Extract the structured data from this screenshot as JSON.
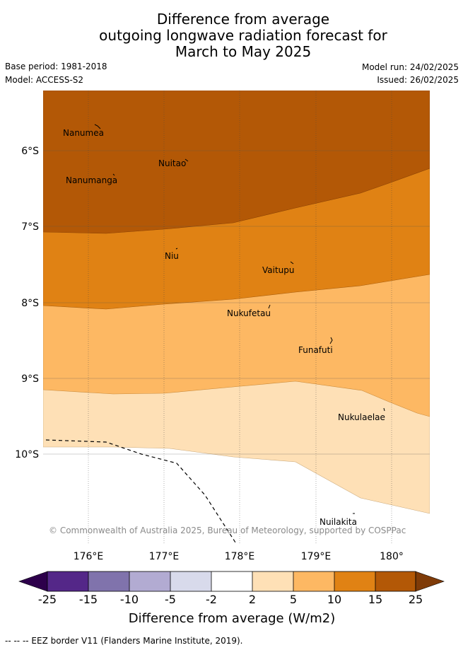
{
  "title": {
    "line1": "Difference from average",
    "line2": "outgoing longwave radiation forecast for",
    "line3": "March to May 2025"
  },
  "meta": {
    "base_period": "Base period: 1981-2018",
    "model": "Model: ACCESS-S2",
    "model_run": "Model run: 24/02/2025",
    "issued": "Issued: 26/02/2025"
  },
  "map": {
    "lat_labels": [
      "6°S",
      "7°S",
      "8°S",
      "9°S",
      "10°S"
    ],
    "lon_labels": [
      "176°E",
      "177°E",
      "178°E",
      "179°E",
      "180°"
    ],
    "places": [
      "Nanumea",
      "Nuitao",
      "Nanumanga",
      "Niu",
      "Vaitupu",
      "Nukufetau",
      "Funafuti",
      "Nukulaelae",
      "Nuilakita"
    ],
    "copyright": "© Commonwealth of Australia 2025, Bureau of Meteorology, supported by COSPPac",
    "colors": {
      "band_15_25": "#b35806",
      "band_10_15": "#e08214",
      "band_5_10": "#fdb863",
      "band_2_5": "#fee0b6",
      "band_neg2_2": "#ffffff"
    }
  },
  "legend": {
    "ticks": [
      "-25",
      "-15",
      "-10",
      "-5",
      "-2",
      "2",
      "5",
      "10",
      "15",
      "25"
    ],
    "label": "Difference from average (W/m2)",
    "colors": [
      "#542788",
      "#8073ac",
      "#b2abd2",
      "#d8daeb",
      "#ffffff",
      "#fee0b6",
      "#fdb863",
      "#e08214",
      "#b35806"
    ],
    "under_color": "#2d004b",
    "over_color": "#7f3b08"
  },
  "footer": "--  --  -- EEZ border V11 (Flanders Marine Institute, 2019)."
}
